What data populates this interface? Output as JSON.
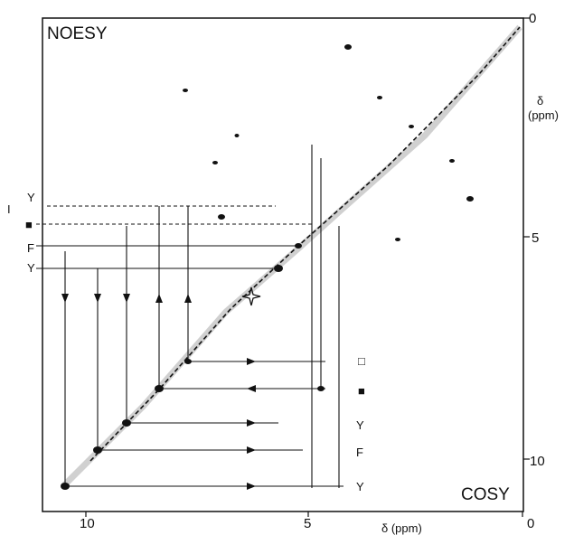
{
  "chart_data": {
    "type": "scatter",
    "corner_labels": {
      "top_left": "NOESY",
      "bottom_right": "COSY"
    },
    "x_axis": {
      "label": "δ (ppm)",
      "ticks": [
        "10",
        "5",
        "0"
      ],
      "lim": [
        11,
        0
      ]
    },
    "y_axis": {
      "label": "δ (ppm)",
      "ticks": [
        "0",
        "5",
        "10"
      ],
      "lim": [
        0,
        11
      ]
    },
    "right_y_label_top": "δ",
    "right_y_label_bottom": "(ppm)",
    "left_markers": [
      "Y",
      "I",
      "■",
      "F",
      "Y"
    ],
    "right_markers": [
      "□",
      "■",
      "Y",
      "F",
      "Y"
    ]
  }
}
